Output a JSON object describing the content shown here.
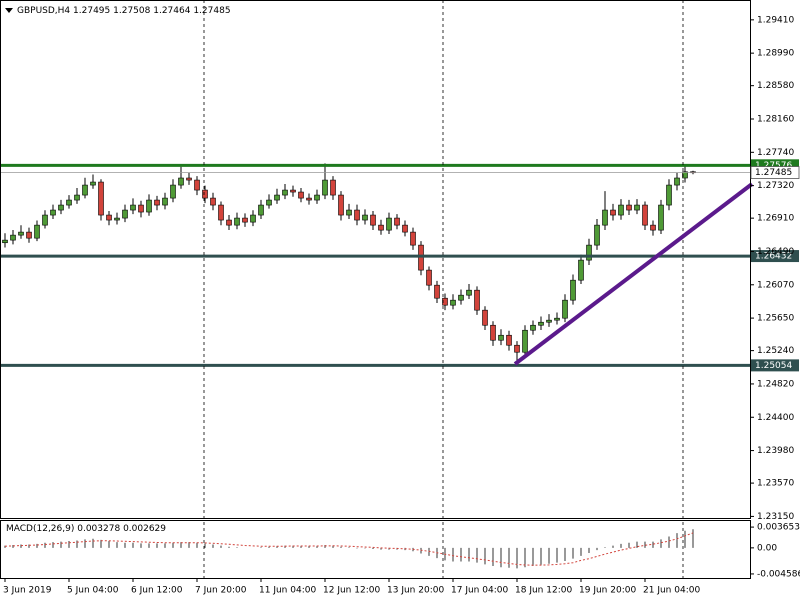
{
  "chart_data": {
    "type": "candlestick",
    "symbol": "GBPUSD,H4",
    "up_color": "#4f9a36",
    "down_color": "#d2433b",
    "xlim": [
      -0.625,
      93.125
    ],
    "xticks": [
      {
        "value": 0,
        "label": "3 Jun 2019"
      },
      {
        "value": 8,
        "label": "5 Jun 04:00"
      },
      {
        "value": 16,
        "label": "6 Jun 12:00"
      },
      {
        "value": 24,
        "label": "7 Jun 20:00"
      },
      {
        "value": 32,
        "label": "11 Jun 04:00"
      },
      {
        "value": 40,
        "label": "12 Jun 12:00"
      },
      {
        "value": 48,
        "label": "13 Jun 20:00"
      },
      {
        "value": 56,
        "label": "17 Jun 04:00"
      },
      {
        "value": 64,
        "label": "18 Jun 12:00"
      },
      {
        "value": 72,
        "label": "19 Jun 20:00"
      },
      {
        "value": 80,
        "label": "21 Jun 04:00"
      }
    ],
    "open": [
      1.266,
      1.26633,
      1.26696,
      1.26734,
      1.26658,
      1.26822,
      1.26949,
      1.27012,
      1.27075,
      1.27138,
      1.27201,
      1.27327,
      1.27365,
      1.26949,
      1.26886,
      1.26911,
      1.27012,
      1.27075,
      1.26987,
      1.27138,
      1.27075,
      1.27163,
      1.27327,
      1.27416,
      1.2739,
      1.27264,
      1.27163,
      1.27075,
      1.26886,
      1.26822,
      1.26911,
      1.2686,
      1.26949,
      1.27075,
      1.27138,
      1.27201,
      1.27264,
      1.27239,
      1.27163,
      1.27138,
      1.27201,
      1.2739,
      1.27201,
      1.26949,
      1.27012,
      1.26886,
      1.26949,
      1.26822,
      1.26759,
      1.26911,
      1.26822,
      1.26734,
      1.2657,
      1.26255,
      1.26065,
      1.25901,
      1.25813,
      1.25876,
      1.25939,
      1.26002,
      1.2575,
      1.2556,
      1.25371,
      1.25434,
      1.25308,
      1.2522,
      1.25497,
      1.2556,
      1.25598,
      1.25624,
      1.25649,
      1.25876,
      1.26128,
      1.26381,
      1.2657,
      1.26822,
      1.27012,
      1.26949,
      1.27075,
      1.27012,
      1.27075,
      1.26822,
      1.26759,
      1.27075,
      1.27327,
      1.27416,
      1.27495
    ],
    "high": [
      1.2672,
      1.2676,
      1.2682,
      1.2679,
      1.2688,
      1.2701,
      1.2708,
      1.2714,
      1.272,
      1.2729,
      1.2742,
      1.2746,
      1.274,
      1.27,
      1.2698,
      1.2708,
      1.2716,
      1.2713,
      1.2721,
      1.2719,
      1.2723,
      1.274,
      1.2756,
      1.2748,
      1.2744,
      1.2732,
      1.2723,
      1.2712,
      1.2695,
      1.2698,
      1.2697,
      1.2701,
      1.2714,
      1.2721,
      1.2728,
      1.2734,
      1.2732,
      1.2729,
      1.2722,
      1.2727,
      1.276,
      1.2744,
      1.2725,
      1.2709,
      1.2708,
      1.2702,
      1.27,
      1.2689,
      1.2698,
      1.2696,
      1.2688,
      1.2679,
      1.2662,
      1.263,
      1.2612,
      1.2596,
      1.2595,
      1.2601,
      1.2608,
      1.2605,
      1.258,
      1.2561,
      1.2551,
      1.2549,
      1.2536,
      1.2556,
      1.2562,
      1.2567,
      1.257,
      1.2572,
      1.2595,
      1.262,
      1.2645,
      1.2665,
      1.269,
      1.2725,
      1.2709,
      1.2715,
      1.2714,
      1.2715,
      1.2712,
      1.2688,
      1.2714,
      1.274,
      1.2748,
      1.27576,
      1.27508
    ],
    "low": [
      1.2654,
      1.2658,
      1.2665,
      1.266,
      1.2662,
      1.2678,
      1.269,
      1.2696,
      1.2703,
      1.2709,
      1.2716,
      1.2728,
      1.2688,
      1.2682,
      1.2683,
      1.2686,
      1.2696,
      1.2692,
      1.2694,
      1.2701,
      1.2702,
      1.2711,
      1.2728,
      1.2733,
      1.272,
      1.271,
      1.2701,
      1.2682,
      1.2676,
      1.2677,
      1.268,
      1.2681,
      1.269,
      1.2703,
      1.2709,
      1.2715,
      1.2718,
      1.2711,
      1.2708,
      1.2709,
      1.2715,
      1.2714,
      1.2688,
      1.269,
      1.2682,
      1.2683,
      1.2676,
      1.267,
      1.2671,
      1.2677,
      1.2668,
      1.2651,
      1.2619,
      1.26,
      1.2584,
      1.2575,
      1.2576,
      1.2582,
      1.2589,
      1.2569,
      1.255,
      1.253,
      1.2531,
      1.2524,
      1.25054,
      1.2517,
      1.2544,
      1.255,
      1.2554,
      1.2557,
      1.256,
      1.2582,
      1.2608,
      1.2632,
      1.2651,
      1.2676,
      1.2688,
      1.2689,
      1.2695,
      1.2696,
      1.2676,
      1.2669,
      1.2671,
      1.2701,
      1.2726,
      1.2736,
      1.27464
    ],
    "close": [
      1.26633,
      1.26696,
      1.26734,
      1.26658,
      1.26822,
      1.26949,
      1.27012,
      1.27075,
      1.27138,
      1.27201,
      1.27327,
      1.27365,
      1.26949,
      1.26886,
      1.26911,
      1.27012,
      1.27075,
      1.26987,
      1.27138,
      1.27075,
      1.27163,
      1.27327,
      1.27416,
      1.2739,
      1.27264,
      1.27163,
      1.27075,
      1.26886,
      1.26822,
      1.26911,
      1.2686,
      1.26949,
      1.27075,
      1.27138,
      1.27201,
      1.27264,
      1.27239,
      1.27163,
      1.27138,
      1.27201,
      1.2739,
      1.27201,
      1.26949,
      1.27012,
      1.26886,
      1.26949,
      1.26822,
      1.26759,
      1.26911,
      1.26822,
      1.26734,
      1.2657,
      1.26255,
      1.26065,
      1.25901,
      1.25813,
      1.25876,
      1.25939,
      1.26002,
      1.2575,
      1.2556,
      1.25371,
      1.25434,
      1.25308,
      1.2522,
      1.25497,
      1.2556,
      1.25598,
      1.25624,
      1.25649,
      1.25876,
      1.26128,
      1.26381,
      1.2657,
      1.26822,
      1.27012,
      1.26949,
      1.27075,
      1.27012,
      1.27075,
      1.26822,
      1.26759,
      1.27075,
      1.27327,
      1.27416,
      1.27495,
      1.27485
    ],
    "ylim": [
      1.2313,
      1.2966
    ],
    "yticks": [
      {
        "value": 1.2941,
        "label": "1.29410"
      },
      {
        "value": 1.2899,
        "label": "1.28990"
      },
      {
        "value": 1.2858,
        "label": "1.28580"
      },
      {
        "value": 1.2816,
        "label": "1.28160"
      },
      {
        "value": 1.2774,
        "label": "1.27740"
      },
      {
        "value": 1.2732,
        "label": "1.27320"
      },
      {
        "value": 1.2691,
        "label": "1.26910"
      },
      {
        "value": 1.2649,
        "label": "1.26490"
      },
      {
        "value": 1.2607,
        "label": "1.26070"
      },
      {
        "value": 1.2565,
        "label": "1.25650"
      },
      {
        "value": 1.2524,
        "label": "1.25240"
      },
      {
        "value": 1.2482,
        "label": "1.24820"
      },
      {
        "value": 1.244,
        "label": "1.24400"
      },
      {
        "value": 1.2398,
        "label": "1.23980"
      },
      {
        "value": 1.2357,
        "label": "1.23570"
      },
      {
        "value": 1.2315,
        "label": "1.23150"
      }
    ],
    "levels": [
      {
        "value": 1.27576,
        "color": "#1e7a1e"
      },
      {
        "value": 1.26432,
        "color": "#2f4f4f"
      },
      {
        "value": 1.25054,
        "color": "#2f4f4f"
      }
    ],
    "indicator": {
      "name": "MACD(12,26,9)",
      "signal_color": "#d2433b",
      "histogram": [
        0.0004,
        0.0005,
        0.0006,
        0.0006,
        0.0007,
        0.0009,
        0.001,
        0.0011,
        0.0012,
        0.0013,
        0.0015,
        0.0016,
        0.0014,
        0.0012,
        0.001,
        0.0009,
        0.0009,
        0.0008,
        0.0008,
        0.0008,
        0.0008,
        0.0009,
        0.001,
        0.001,
        0.0009,
        0.0008,
        0.0006,
        0.0004,
        0.0002,
        0.0001,
        0.0,
        0.0,
        0.0001,
        0.0002,
        0.0003,
        0.0004,
        0.0004,
        0.0003,
        0.0003,
        0.0003,
        0.0005,
        0.0004,
        0.0002,
        0.0001,
        -0.0001,
        -0.0001,
        -0.0002,
        -0.0003,
        -0.0003,
        -0.0003,
        -0.0004,
        -0.0006,
        -0.001,
        -0.0014,
        -0.0018,
        -0.0022,
        -0.0024,
        -0.0024,
        -0.0024,
        -0.0026,
        -0.0029,
        -0.0032,
        -0.0034,
        -0.0035,
        -0.0036,
        -0.0034,
        -0.0032,
        -0.003,
        -0.0028,
        -0.0026,
        -0.0023,
        -0.0019,
        -0.0014,
        -0.0009,
        -0.0004,
        0.0001,
        0.0004,
        0.0007,
        0.0009,
        0.0011,
        0.0011,
        0.0011,
        0.0015,
        0.002,
        0.0026,
        0.003,
        0.003278
      ],
      "signal": [
        0.0003,
        0.00035,
        0.0004,
        0.00045,
        0.0005,
        0.0006,
        0.0007,
        0.0008,
        0.0009,
        0.001,
        0.0011,
        0.0012,
        0.00125,
        0.00125,
        0.0012,
        0.00115,
        0.0011,
        0.00105,
        0.001,
        0.00095,
        0.0009,
        0.0009,
        0.0009,
        0.0009,
        0.0009,
        0.00088,
        0.0008,
        0.00072,
        0.00062,
        0.00052,
        0.00042,
        0.00034,
        0.00029,
        0.00027,
        0.00028,
        0.0003,
        0.00032,
        0.00032,
        0.00032,
        0.00032,
        0.00035,
        0.00036,
        0.00033,
        0.00029,
        0.00021,
        0.00015,
        8e-05,
        0.0,
        -6e-05,
        -0.00011,
        -0.00017,
        -0.00026,
        -0.00041,
        -0.00061,
        -0.00085,
        -0.00112,
        -0.00138,
        -0.00158,
        -0.00175,
        -0.00192,
        -0.00212,
        -0.00234,
        -0.00255,
        -0.00274,
        -0.00291,
        -0.00301,
        -0.00305,
        -0.00304,
        -0.00299,
        -0.00291,
        -0.00279,
        -0.00261,
        -0.0022,
        -0.0019,
        -0.0015,
        -0.0011,
        -0.00075,
        -0.0004,
        -0.0001,
        0.0002,
        0.00045,
        0.00065,
        0.0009,
        0.0012,
        0.0016,
        0.0021,
        0.002629
      ],
      "ylim": [
        -0.0053,
        0.0049
      ],
      "yticks": [
        0.003653,
        {
          "value": 0,
          "label": "0.00"
        },
        -0.004586
      ]
    }
  }
}
